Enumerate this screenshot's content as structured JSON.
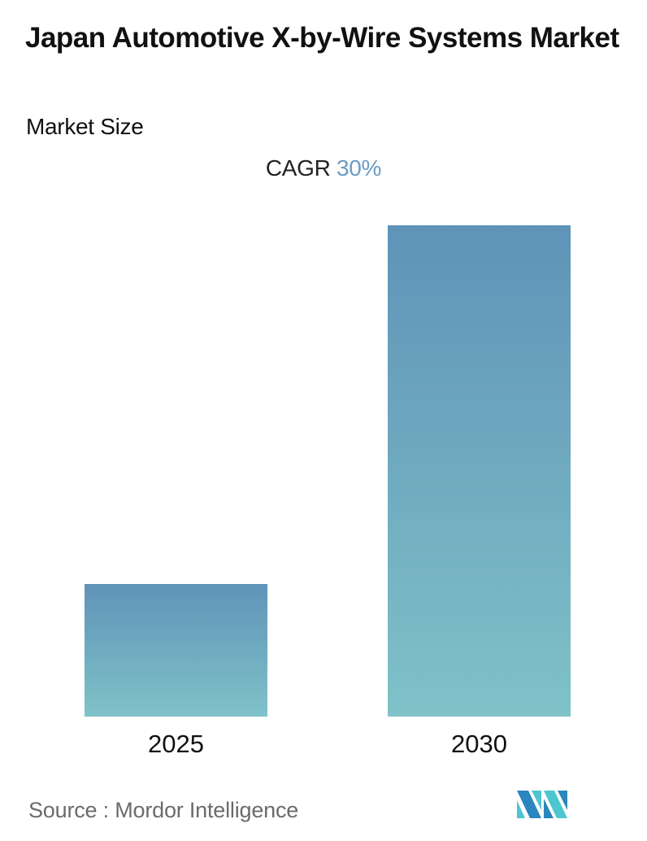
{
  "header": {
    "title": "Japan Automotive X-by-Wire Systems Market",
    "subtitle": "Market Size"
  },
  "cagr": {
    "label": "CAGR",
    "value": "30%",
    "value_color": "#6a9cc4"
  },
  "footer": {
    "source": "Source :  Mordor Intelligence",
    "logo": "mordor-intelligence-logo"
  },
  "colors": {
    "bar_top": "#5f93b8",
    "bar_bottom": "#7fc2c8"
  },
  "chart_data": {
    "type": "bar",
    "title": "Japan Automotive X-by-Wire Systems Market",
    "subtitle": "Market Size",
    "annotation": "CAGR 30%",
    "categories": [
      "2025",
      "2030"
    ],
    "values": [
      27,
      100
    ],
    "value_note": "Relative bar heights (no axis or values shown); 2030 bar ≈ 3.7× the 2025 bar",
    "xlabel": "",
    "ylabel": "",
    "grid": false,
    "legend": null,
    "source": "Mordor Intelligence"
  }
}
